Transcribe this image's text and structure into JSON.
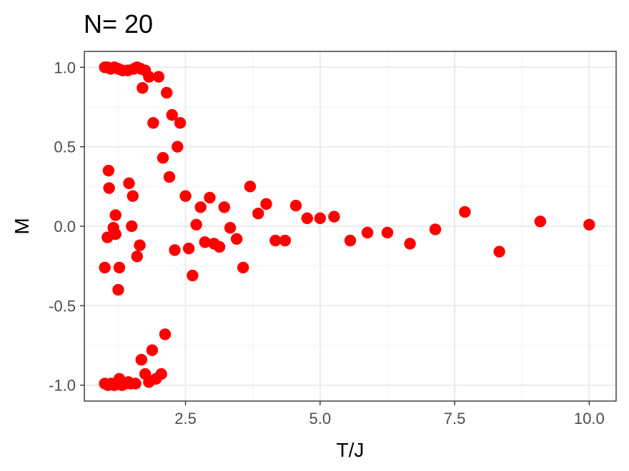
{
  "chart_data": {
    "type": "scatter",
    "title": "N= 20",
    "xlabel": "T/J",
    "ylabel": "M",
    "xlim": [
      0.62,
      10.5
    ],
    "ylim": [
      -1.1,
      1.1
    ],
    "x_ticks": [
      2.5,
      5.0,
      7.5,
      10.0
    ],
    "x_tick_labels": [
      "2.5",
      "5.0",
      "7.5",
      "10.0"
    ],
    "y_ticks": [
      -1.0,
      -0.5,
      0.0,
      0.5,
      1.0
    ],
    "y_tick_labels": [
      "-1.0",
      "-0.5",
      "0.0",
      "0.5",
      "1.0"
    ],
    "grid": true,
    "legend": "none",
    "point_color": "#ff0000",
    "points": [
      {
        "x": 1.0,
        "y": 1.0
      },
      {
        "x": 1.05,
        "y": 1.0
      },
      {
        "x": 1.11,
        "y": 0.99
      },
      {
        "x": 1.18,
        "y": 1.0
      },
      {
        "x": 1.25,
        "y": 0.99
      },
      {
        "x": 1.33,
        "y": 0.98
      },
      {
        "x": 1.43,
        "y": 0.98
      },
      {
        "x": 1.54,
        "y": 0.99
      },
      {
        "x": 1.6,
        "y": 1.0
      },
      {
        "x": 1.67,
        "y": 0.99
      },
      {
        "x": 1.75,
        "y": 0.98
      },
      {
        "x": 1.82,
        "y": 0.94
      },
      {
        "x": 2.0,
        "y": 0.94
      },
      {
        "x": 1.7,
        "y": 0.87
      },
      {
        "x": 2.15,
        "y": 0.84
      },
      {
        "x": 2.25,
        "y": 0.7
      },
      {
        "x": 1.9,
        "y": 0.65
      },
      {
        "x": 2.4,
        "y": 0.65
      },
      {
        "x": 2.35,
        "y": 0.5
      },
      {
        "x": 2.08,
        "y": 0.43
      },
      {
        "x": 1.07,
        "y": 0.35
      },
      {
        "x": 2.2,
        "y": 0.31
      },
      {
        "x": 1.45,
        "y": 0.27
      },
      {
        "x": 3.7,
        "y": 0.25
      },
      {
        "x": 1.08,
        "y": 0.24
      },
      {
        "x": 1.52,
        "y": 0.19
      },
      {
        "x": 2.5,
        "y": 0.19
      },
      {
        "x": 2.95,
        "y": 0.18
      },
      {
        "x": 4.0,
        "y": 0.14
      },
      {
        "x": 4.55,
        "y": 0.13
      },
      {
        "x": 2.78,
        "y": 0.12
      },
      {
        "x": 3.22,
        "y": 0.12
      },
      {
        "x": 7.69,
        "y": 0.09
      },
      {
        "x": 3.85,
        "y": 0.08
      },
      {
        "x": 1.2,
        "y": 0.07
      },
      {
        "x": 5.26,
        "y": 0.06
      },
      {
        "x": 4.76,
        "y": 0.05
      },
      {
        "x": 5.0,
        "y": 0.05
      },
      {
        "x": 9.09,
        "y": 0.03
      },
      {
        "x": 2.7,
        "y": 0.01
      },
      {
        "x": 10.0,
        "y": 0.01
      },
      {
        "x": 1.5,
        "y": 0.0
      },
      {
        "x": 1.16,
        "y": -0.01
      },
      {
        "x": 3.33,
        "y": -0.01
      },
      {
        "x": 7.14,
        "y": -0.02
      },
      {
        "x": 5.88,
        "y": -0.04
      },
      {
        "x": 6.25,
        "y": -0.04
      },
      {
        "x": 1.2,
        "y": -0.05
      },
      {
        "x": 1.05,
        "y": -0.07
      },
      {
        "x": 3.45,
        "y": -0.08
      },
      {
        "x": 4.17,
        "y": -0.09
      },
      {
        "x": 4.35,
        "y": -0.09
      },
      {
        "x": 5.56,
        "y": -0.09
      },
      {
        "x": 2.86,
        "y": -0.1
      },
      {
        "x": 3.03,
        "y": -0.11
      },
      {
        "x": 6.67,
        "y": -0.11
      },
      {
        "x": 1.65,
        "y": -0.12
      },
      {
        "x": 3.13,
        "y": -0.13
      },
      {
        "x": 2.56,
        "y": -0.14
      },
      {
        "x": 2.3,
        "y": -0.15
      },
      {
        "x": 8.33,
        "y": -0.16
      },
      {
        "x": 1.6,
        "y": -0.19
      },
      {
        "x": 1.0,
        "y": -0.26
      },
      {
        "x": 1.27,
        "y": -0.26
      },
      {
        "x": 3.57,
        "y": -0.26
      },
      {
        "x": 2.63,
        "y": -0.31
      },
      {
        "x": 1.25,
        "y": -0.4
      },
      {
        "x": 2.12,
        "y": -0.68
      },
      {
        "x": 1.88,
        "y": -0.78
      },
      {
        "x": 1.68,
        "y": -0.84
      },
      {
        "x": 1.75,
        "y": -0.93
      },
      {
        "x": 2.05,
        "y": -0.93
      },
      {
        "x": 1.27,
        "y": -0.96
      },
      {
        "x": 1.95,
        "y": -0.96
      },
      {
        "x": 1.44,
        "y": -0.98
      },
      {
        "x": 1.82,
        "y": -0.98
      },
      {
        "x": 1.0,
        "y": -0.99
      },
      {
        "x": 1.06,
        "y": -1.0
      },
      {
        "x": 1.12,
        "y": -0.99
      },
      {
        "x": 1.18,
        "y": -1.0
      },
      {
        "x": 1.23,
        "y": -0.99
      },
      {
        "x": 1.32,
        "y": -1.0
      },
      {
        "x": 1.38,
        "y": -0.99
      },
      {
        "x": 1.48,
        "y": -0.99
      },
      {
        "x": 1.57,
        "y": -0.99
      }
    ]
  }
}
